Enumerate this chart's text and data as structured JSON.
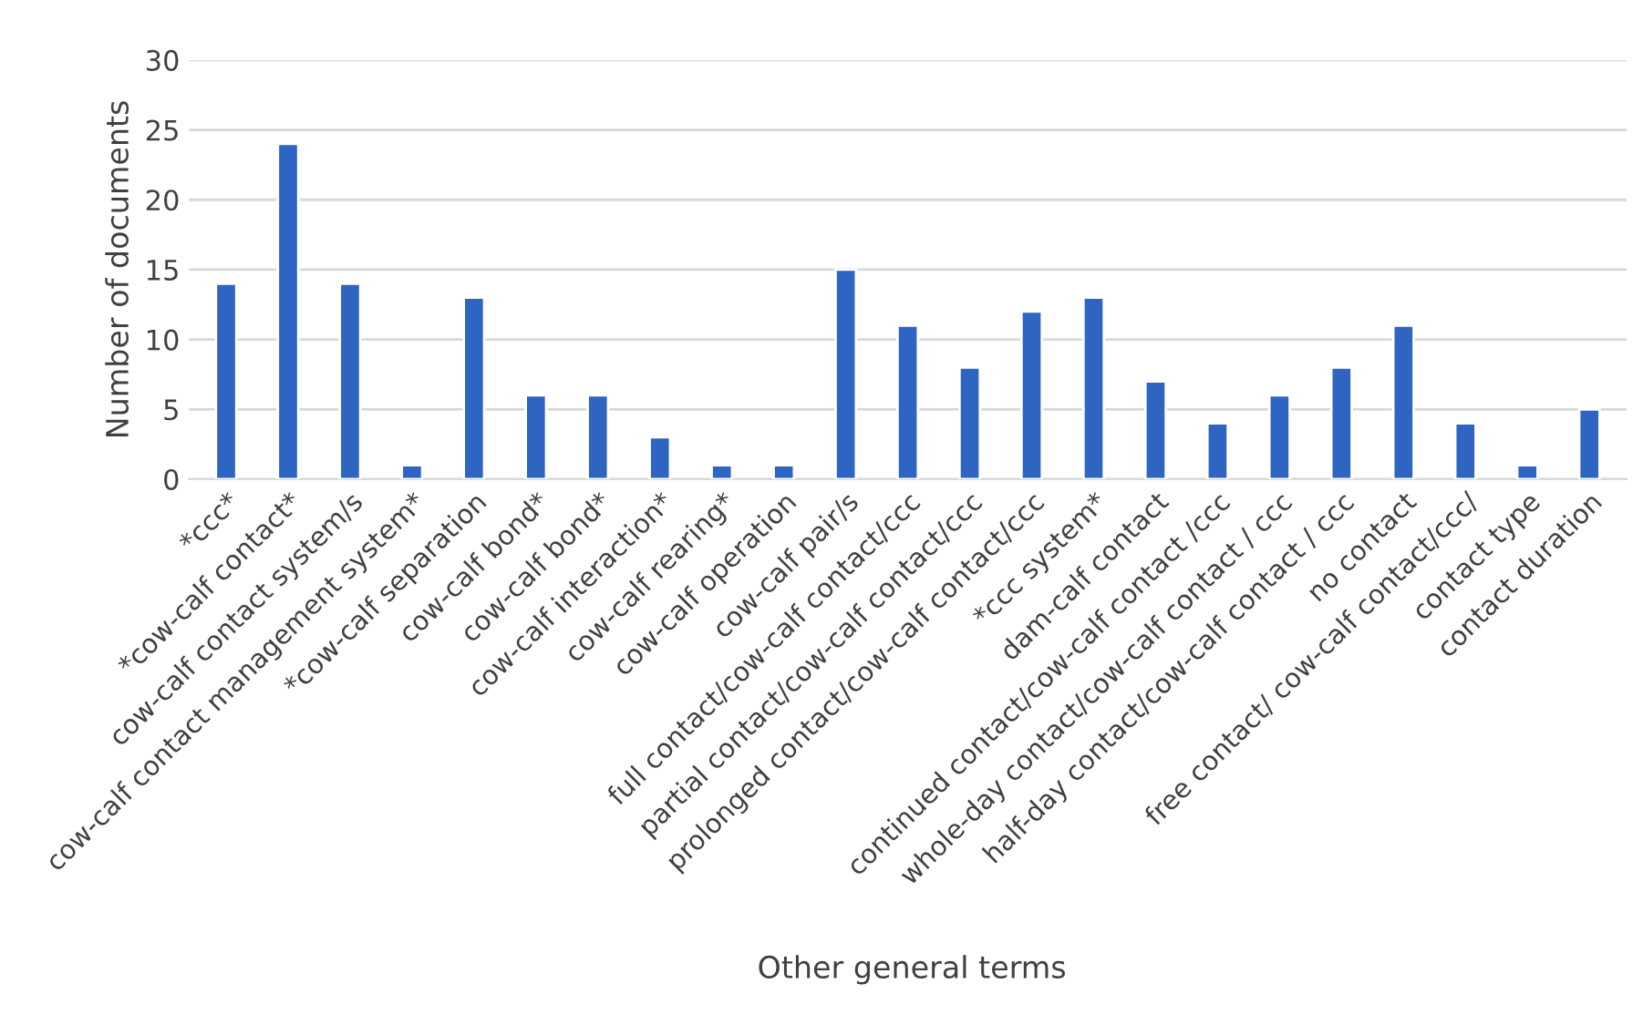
{
  "chart_data": {
    "type": "bar",
    "xlabel": "Other general terms",
    "ylabel": "Number of documents",
    "categories": [
      "*ccc*",
      "*cow-calf contact*",
      "cow-calf contact system/s",
      "cow-calf contact management system*",
      "*cow-calf separation",
      "cow-calf bond*",
      "cow-calf bond*",
      "cow-calf interaction*",
      "cow-calf rearing*",
      "cow-calf operation",
      "cow-calf pair/s",
      "full contact/cow-calf contact/ccc",
      "partial contact/cow-calf contact/ccc",
      "prolonged contact/cow-calf contact/ccc",
      "*ccc system*",
      "dam-calf contact",
      "continued contact/cow-calf contact /ccc",
      "whole-day contact/cow-calf contact / ccc",
      "half-day contact/cow-calf contact / ccc",
      "no contact",
      "free contact/ cow-calf contact/ccc/",
      "contact type",
      "contact duration"
    ],
    "values": [
      14,
      24,
      14,
      1,
      13,
      6,
      6,
      3,
      1,
      1,
      15,
      11,
      8,
      12,
      13,
      7,
      4,
      6,
      8,
      11,
      4,
      1,
      5
    ],
    "color": "#2e64c2",
    "ylim": [
      0,
      30
    ],
    "yticks": [
      0,
      5,
      10,
      15,
      20,
      25,
      30
    ],
    "grid": "y",
    "legend": false
  }
}
